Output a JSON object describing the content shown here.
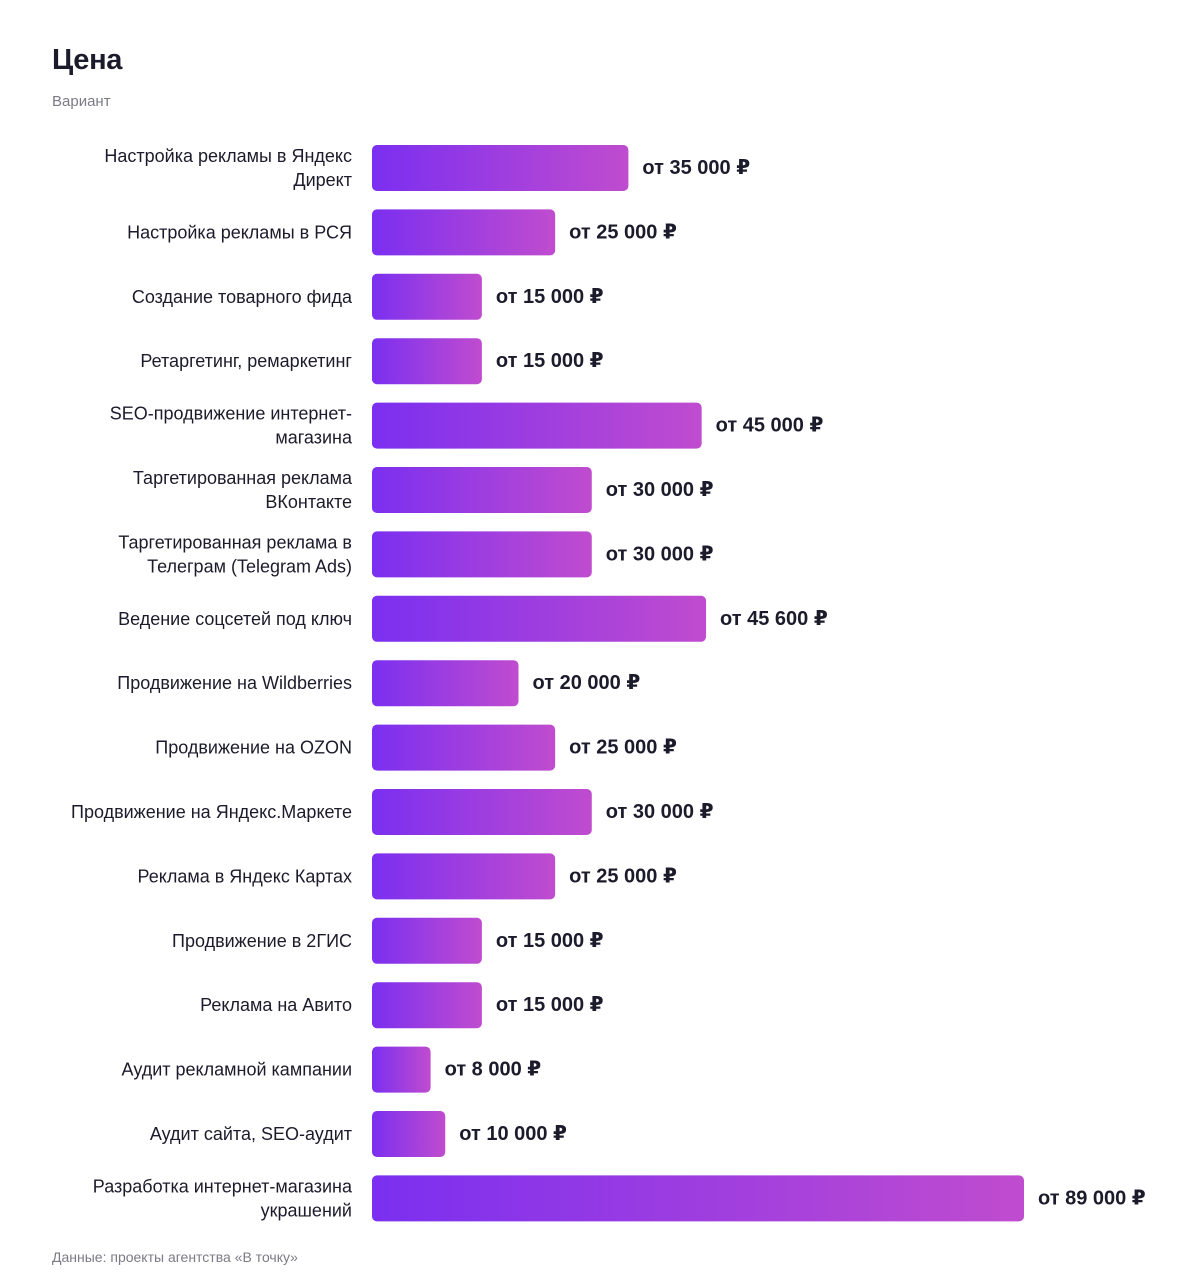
{
  "chart_data": {
    "type": "bar",
    "orientation": "horizontal",
    "title": "Цена",
    "subtitle": "Вариант",
    "categories": [
      "Настройка рекламы в Яндекс Директ",
      "Настройка рекламы в РСЯ",
      "Создание товарного фида",
      "Ретаргетинг, ремаркетинг",
      "SEO-продвижение интернет-магазина",
      "Таргетированная реклама ВКонтакте",
      "Таргетированная реклама в Телеграм (Telegram Ads)",
      "Ведение соцсетей под ключ",
      "Продвижение на Wildberries",
      "Продвижение на OZON",
      "Продвижение на Яндекс.Маркете",
      "Реклама в Яндекс Картах",
      "Продвижение в 2ГИС",
      "Реклама на Авито",
      "Аудит рекламной кампании",
      "Аудит сайта, SEO-аудит",
      "Разработка интернет-магазина украшений"
    ],
    "category_lines": [
      [
        "Настройка рекламы в Яндекс",
        "Директ"
      ],
      [
        "Настройка рекламы в РСЯ"
      ],
      [
        "Создание товарного фида"
      ],
      [
        "Ретаргетинг, ремаркетинг"
      ],
      [
        "SEO-продвижение интернет-",
        "магазина"
      ],
      [
        "Таргетированная реклама",
        "ВКонтакте"
      ],
      [
        "Таргетированная реклама в",
        "Телеграм (Telegram Ads)"
      ],
      [
        "Ведение соцсетей под ключ"
      ],
      [
        "Продвижение на Wildberries"
      ],
      [
        "Продвижение на OZON"
      ],
      [
        "Продвижение на Яндекс.Маркете"
      ],
      [
        "Реклама в Яндекс Картах"
      ],
      [
        "Продвижение в 2ГИС"
      ],
      [
        "Реклама на Авито"
      ],
      [
        "Аудит рекламной кампании"
      ],
      [
        "Аудит сайта, SEO-аудит"
      ],
      [
        "Разработка интернет-магазина",
        "украшений"
      ]
    ],
    "values": [
      35000,
      25000,
      15000,
      15000,
      45000,
      30000,
      30000,
      45600,
      20000,
      25000,
      30000,
      25000,
      15000,
      15000,
      8000,
      10000,
      89000
    ],
    "value_labels": [
      "от 35 000 ₽",
      "от 25 000 ₽",
      "от 15 000 ₽",
      "от 15 000 ₽",
      "от 45 000 ₽",
      "от 30 000 ₽",
      "от 30 000 ₽",
      "от 45 600 ₽",
      "от 20 000 ₽",
      "от 25 000 ₽",
      "от 30 000 ₽",
      "от 25 000 ₽",
      "от 15 000 ₽",
      "от 15 000 ₽",
      "от 8 000 ₽",
      "от 10 000 ₽",
      "от 89 000 ₽"
    ],
    "xlim": [
      0,
      89000
    ],
    "grid": false,
    "legend": "none",
    "colors": {
      "bar_gradient_start": "#7b2ff0",
      "bar_gradient_end": "#c04ccf",
      "text": "#1c1b2b",
      "muted_text": "#7b7b86"
    }
  },
  "footnote": "Данные: проекты агентства «В точку»"
}
